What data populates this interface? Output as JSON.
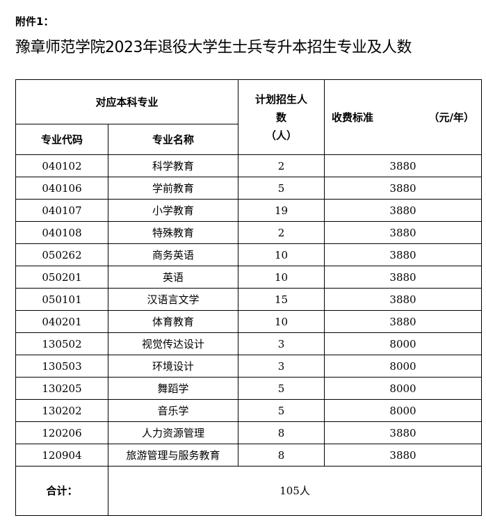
{
  "attachment": "附件1：",
  "title": "豫章师范学院2023年退役大学生士兵专升本招生专业及人数",
  "headers": {
    "major_group": "对应本科专业",
    "plan_line1": "计划招生人",
    "plan_line2": "数",
    "plan_line3": "（人）",
    "fee": "收费标准",
    "fee_unit": "（元/年）",
    "code": "专业代码",
    "name": "专业名称"
  },
  "rows": [
    [
      "040102",
      "科学教育",
      "2",
      "3880"
    ],
    [
      "040106",
      "学前教育",
      "5",
      "3880"
    ],
    [
      "040107",
      "小学教育",
      "19",
      "3880"
    ],
    [
      "040108",
      "特殊教育",
      "2",
      "3880"
    ],
    [
      "050262",
      "商务英语",
      "10",
      "3880"
    ],
    [
      "050201",
      "英语",
      "10",
      "3880"
    ],
    [
      "050101",
      "汉语言文学",
      "15",
      "3880"
    ],
    [
      "040201",
      "体育教育",
      "10",
      "3880"
    ],
    [
      "130502",
      "视觉传达设计",
      "3",
      "8000"
    ],
    [
      "130503",
      "环境设计",
      "3",
      "8000"
    ],
    [
      "130205",
      "舞蹈学",
      "5",
      "8000"
    ],
    [
      "130202",
      "音乐学",
      "5",
      "8000"
    ],
    [
      "120206",
      "人力资源管理",
      "8",
      "3880"
    ],
    [
      "120904",
      "旅游管理与服务教育",
      "8",
      "3880"
    ]
  ],
  "total": {
    "label": "合计：",
    "value": "105人"
  }
}
